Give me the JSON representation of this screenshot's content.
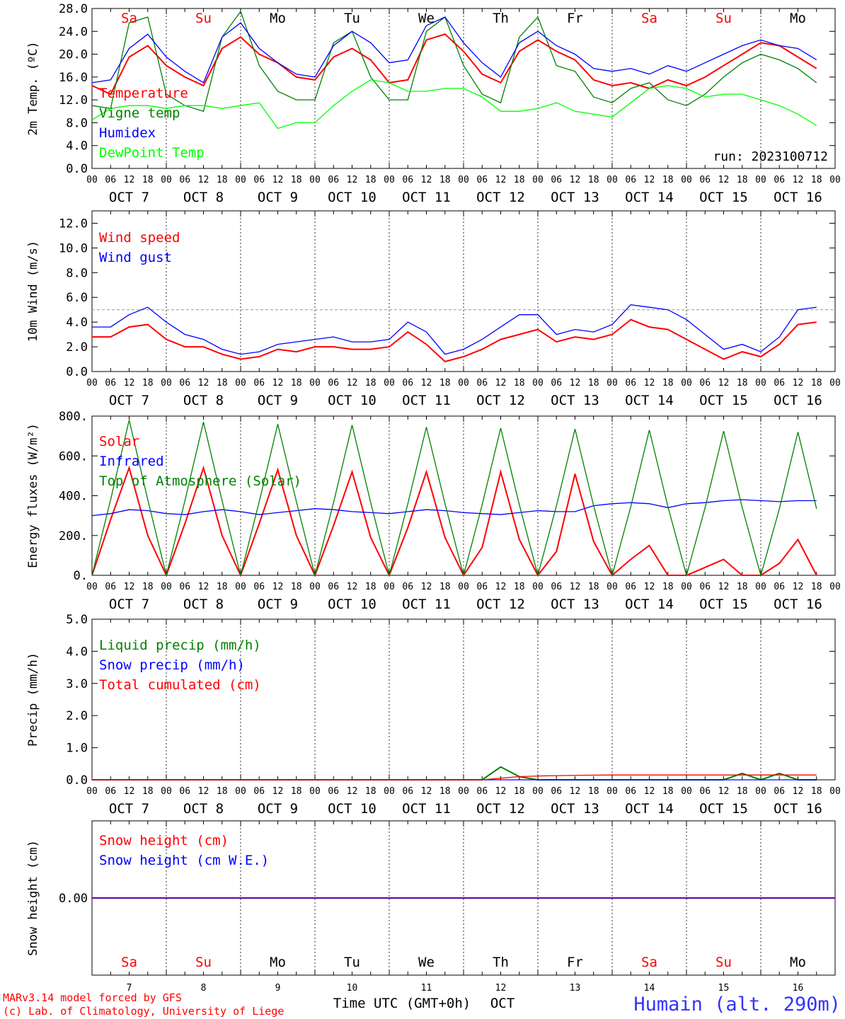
{
  "run_label": "run: 2023100712",
  "footer": {
    "model_line": "MARv3.14 model forced by GFS",
    "lab_line": "(c) Lab. of Climatology, University of Liege",
    "time_axis": "Time UTC (GMT+0h)",
    "month": "OCT",
    "station": "Humain (alt. 290m)"
  },
  "hour_ticks": [
    "00",
    "06",
    "12",
    "18"
  ],
  "hour_tail": "00",
  "days": [
    {
      "weekday": "Sa",
      "date": "OCT  7",
      "num": "7",
      "weekend": true
    },
    {
      "weekday": "Su",
      "date": "OCT  8",
      "num": "8",
      "weekend": true
    },
    {
      "weekday": "Mo",
      "date": "OCT  9",
      "num": "9",
      "weekend": false
    },
    {
      "weekday": "Tu",
      "date": "OCT 10",
      "num": "10",
      "weekend": false
    },
    {
      "weekday": "We",
      "date": "OCT 11",
      "num": "11",
      "weekend": false
    },
    {
      "weekday": "Th",
      "date": "OCT 12",
      "num": "12",
      "weekend": false
    },
    {
      "weekday": "Fr",
      "date": "OCT 13",
      "num": "13",
      "weekend": false
    },
    {
      "weekday": "Sa",
      "date": "OCT 14",
      "num": "14",
      "weekend": true
    },
    {
      "weekday": "Su",
      "date": "OCT 15",
      "num": "15",
      "weekend": true
    },
    {
      "weekday": "Mo",
      "date": "OCT 16",
      "num": "16",
      "weekend": false
    }
  ],
  "colors": {
    "weekend": "#ff0000",
    "weekday": "#000000",
    "grid": "#000000",
    "ref": "#999999"
  },
  "chart_data": [
    {
      "type": "line",
      "id": "temp",
      "ylabel": "2m Temp. (ºC)",
      "ylim": [
        0,
        28
      ],
      "ytick_values": [
        0,
        4,
        8,
        12,
        16,
        20,
        24,
        28
      ],
      "ytick_labels": [
        "0.0",
        "4.0",
        "8.0",
        "12.0",
        "16.0",
        "20.0",
        "24.0",
        "28.0"
      ],
      "x_hours": [
        0,
        6,
        12,
        18,
        24,
        30,
        36,
        42,
        48,
        54,
        60,
        66,
        72,
        78,
        84,
        90,
        96,
        102,
        108,
        114,
        120,
        126,
        132,
        138,
        144,
        150,
        156,
        162,
        168,
        174,
        180,
        186,
        192,
        198,
        204,
        210,
        216,
        222,
        228,
        234
      ],
      "series": [
        {
          "name": "Temperature",
          "color": "#ff0000",
          "values": [
            14.5,
            13.0,
            19.5,
            21.5,
            18.0,
            16.0,
            14.5,
            21.0,
            23.0,
            20.0,
            18.5,
            16.0,
            15.5,
            19.5,
            21.0,
            19.0,
            15.0,
            15.5,
            22.5,
            23.5,
            20.5,
            16.5,
            15.0,
            20.5,
            22.5,
            20.5,
            19.0,
            15.5,
            14.5,
            15.0,
            14.0,
            15.5,
            14.5,
            16.0,
            18.0,
            20.0,
            22.0,
            21.5,
            19.5,
            17.5
          ]
        },
        {
          "name": "Vigne temp",
          "color": "#008000",
          "values": [
            11.0,
            10.5,
            25.5,
            26.5,
            13.0,
            11.0,
            10.0,
            23.0,
            27.5,
            18.0,
            13.5,
            12.0,
            12.0,
            22.0,
            24.0,
            16.0,
            12.0,
            12.0,
            24.0,
            26.5,
            18.0,
            13.0,
            11.5,
            23.0,
            26.5,
            18.0,
            17.0,
            12.5,
            11.5,
            14.0,
            15.0,
            12.0,
            11.0,
            13.0,
            16.0,
            18.5,
            20.0,
            19.0,
            17.5,
            15.0
          ]
        },
        {
          "name": "Humidex",
          "color": "#0000ff",
          "values": [
            15.0,
            15.5,
            21.0,
            23.5,
            19.5,
            17.0,
            15.0,
            23.0,
            25.5,
            21.0,
            18.5,
            16.5,
            16.0,
            21.5,
            24.0,
            22.0,
            18.5,
            19.0,
            25.0,
            26.5,
            22.0,
            18.5,
            16.0,
            22.0,
            24.0,
            21.5,
            20.0,
            17.5,
            17.0,
            17.5,
            16.5,
            18.0,
            17.0,
            18.5,
            20.0,
            21.5,
            22.5,
            21.5,
            21.0,
            19.0
          ]
        },
        {
          "name": "DewPoint Temp",
          "color": "#00ff00",
          "values": [
            8.5,
            10.5,
            11.0,
            11.0,
            10.5,
            11.0,
            11.0,
            10.5,
            11.0,
            11.5,
            7.0,
            8.0,
            8.0,
            11.0,
            13.5,
            15.5,
            15.0,
            13.5,
            13.5,
            14.0,
            14.0,
            12.5,
            10.0,
            10.0,
            10.5,
            11.5,
            10.0,
            9.5,
            9.0,
            11.5,
            14.0,
            14.5,
            14.0,
            12.5,
            13.0,
            13.0,
            12.0,
            11.0,
            9.5,
            7.5
          ]
        }
      ]
    },
    {
      "type": "line",
      "id": "wind",
      "ylabel": "10m Wind (m/s)",
      "ylim": [
        0,
        13
      ],
      "ytick_values": [
        0,
        2,
        4,
        6,
        8,
        10,
        12
      ],
      "ytick_labels": [
        "0.0",
        "2.0",
        "4.0",
        "6.0",
        "8.0",
        "10.0",
        "12.0"
      ],
      "reference_line": 5,
      "x_hours": [
        0,
        6,
        12,
        18,
        24,
        30,
        36,
        42,
        48,
        54,
        60,
        66,
        72,
        78,
        84,
        90,
        96,
        102,
        108,
        114,
        120,
        126,
        132,
        138,
        144,
        150,
        156,
        162,
        168,
        174,
        180,
        186,
        192,
        198,
        204,
        210,
        216,
        222,
        228,
        234
      ],
      "series": [
        {
          "name": "Wind speed",
          "color": "#ff0000",
          "values": [
            2.8,
            2.8,
            3.6,
            3.8,
            2.6,
            2.0,
            2.0,
            1.4,
            1.0,
            1.2,
            1.8,
            1.6,
            2.0,
            2.0,
            1.8,
            1.8,
            2.0,
            3.2,
            2.2,
            0.8,
            1.2,
            1.8,
            2.6,
            3.0,
            3.4,
            2.4,
            2.8,
            2.6,
            3.0,
            4.2,
            3.6,
            3.4,
            2.6,
            1.8,
            1.0,
            1.6,
            1.2,
            2.2,
            3.8,
            4.0
          ]
        },
        {
          "name": "Wind gust",
          "color": "#0000ff",
          "values": [
            3.6,
            3.6,
            4.6,
            5.2,
            4.0,
            3.0,
            2.6,
            1.8,
            1.4,
            1.6,
            2.2,
            2.4,
            2.6,
            2.8,
            2.4,
            2.4,
            2.6,
            4.0,
            3.2,
            1.4,
            1.8,
            2.6,
            3.6,
            4.6,
            4.6,
            3.0,
            3.4,
            3.2,
            3.8,
            5.4,
            5.2,
            5.0,
            4.2,
            3.0,
            1.8,
            2.2,
            1.6,
            2.8,
            5.0,
            5.2
          ]
        }
      ]
    },
    {
      "type": "line",
      "id": "flux",
      "ylabel": "Energy fluxes (W/m²)",
      "ylim": [
        0,
        800
      ],
      "ytick_values": [
        0,
        200,
        400,
        600,
        800
      ],
      "ytick_labels": [
        "0.",
        "200.",
        "400.",
        "600.",
        "800."
      ],
      "x_hours": [
        0,
        6,
        12,
        18,
        24,
        30,
        36,
        42,
        48,
        54,
        60,
        66,
        72,
        78,
        84,
        90,
        96,
        102,
        108,
        114,
        120,
        126,
        132,
        138,
        144,
        150,
        156,
        162,
        168,
        174,
        180,
        186,
        192,
        198,
        204,
        210,
        216,
        222,
        228,
        234
      ],
      "series": [
        {
          "name": "Solar",
          "color": "#ff0000",
          "values": [
            0,
            280,
            540,
            200,
            0,
            260,
            540,
            200,
            0,
            260,
            530,
            200,
            0,
            250,
            520,
            190,
            0,
            240,
            520,
            190,
            0,
            140,
            520,
            180,
            0,
            120,
            510,
            170,
            0,
            80,
            150,
            0,
            0,
            40,
            80,
            0,
            0,
            60,
            180,
            0
          ]
        },
        {
          "name": "Infrared",
          "color": "#0000ff",
          "values": [
            300,
            310,
            330,
            325,
            310,
            305,
            320,
            330,
            320,
            305,
            315,
            325,
            335,
            330,
            320,
            315,
            310,
            320,
            330,
            325,
            315,
            310,
            305,
            315,
            325,
            320,
            320,
            350,
            360,
            365,
            360,
            340,
            360,
            365,
            375,
            380,
            375,
            370,
            375,
            375
          ]
        },
        {
          "name": "Top of Atmosphere (Solar)",
          "color": "#008000",
          "values": [
            0,
            380,
            780,
            380,
            0,
            375,
            770,
            375,
            0,
            370,
            760,
            370,
            0,
            365,
            755,
            365,
            0,
            360,
            745,
            360,
            0,
            355,
            740,
            355,
            0,
            350,
            735,
            350,
            0,
            345,
            730,
            345,
            0,
            340,
            725,
            340,
            0,
            335,
            720,
            335
          ]
        }
      ]
    },
    {
      "type": "line",
      "id": "precip",
      "ylabel": "Precip (mm/h)",
      "ylim": [
        0,
        5
      ],
      "ytick_values": [
        0,
        1,
        2,
        3,
        4,
        5
      ],
      "ytick_labels": [
        "0.0",
        "1.0",
        "2.0",
        "3.0",
        "4.0",
        "5.0"
      ],
      "x_hours": [
        0,
        30,
        60,
        90,
        120,
        126,
        132,
        138,
        144,
        156,
        168,
        180,
        186,
        192,
        198,
        204,
        210,
        216,
        222,
        228,
        234
      ],
      "series": [
        {
          "name": "Liquid precip (mm/h)",
          "color": "#008000",
          "values": [
            0,
            0,
            0,
            0,
            0,
            0,
            0.4,
            0.1,
            0,
            0,
            0,
            0,
            0,
            0,
            0,
            0,
            0.2,
            0,
            0.2,
            0,
            0
          ]
        },
        {
          "name": "Snow precip (mm/h)",
          "color": "#0000ff",
          "values": [
            0,
            0,
            0,
            0,
            0,
            0,
            0,
            0,
            0,
            0,
            0,
            0,
            0,
            0,
            0,
            0,
            0,
            0,
            0,
            0,
            0
          ]
        },
        {
          "name": "Total cumulated (cm)",
          "color": "#ff0000",
          "values": [
            0,
            0,
            0,
            0,
            0,
            0,
            0.05,
            0.1,
            0.12,
            0.14,
            0.15,
            0.15,
            0.15,
            0.15,
            0.15,
            0.15,
            0.15,
            0.15,
            0.15,
            0.15,
            0.15
          ]
        }
      ]
    },
    {
      "type": "line",
      "id": "snow",
      "ylabel": "Snow height (cm)",
      "ylim": [
        -1,
        1
      ],
      "ytick_values": [
        0
      ],
      "ytick_labels": [
        "0.00"
      ],
      "x_hours": [
        0,
        240
      ],
      "series": [
        {
          "name": "Snow height (cm)",
          "color": "#ff0000",
          "values": [
            0,
            0
          ]
        },
        {
          "name": "Snow height (cm W.E.)",
          "color": "#0000ff",
          "values": [
            0,
            0
          ]
        }
      ]
    }
  ]
}
